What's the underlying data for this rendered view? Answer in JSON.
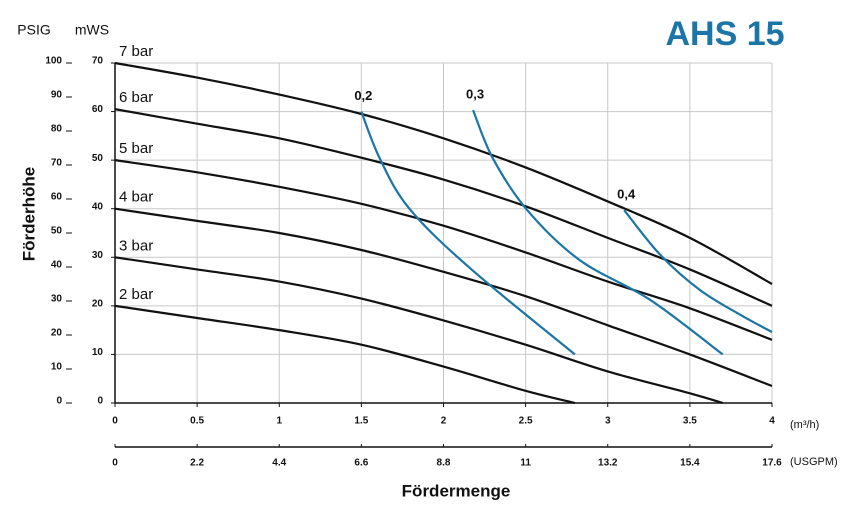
{
  "chart_data": {
    "type": "line",
    "title": "AHS 15",
    "y_label": "Förderhöhe",
    "x_label": "Fördermenge",
    "y_header": "mWS",
    "y2_header": "PSIG",
    "x_unit": "(m³/h)",
    "x2_unit": "(USGPM)",
    "grid": true,
    "xlim": [
      0,
      4
    ],
    "xticks": [
      0,
      0.5,
      1,
      1.5,
      2,
      2.5,
      3,
      3.5,
      4
    ],
    "x2lim": [
      0,
      17.6
    ],
    "x2ticks": [
      0,
      2.2,
      4.4,
      6.6,
      8.8,
      11,
      13.2,
      15.4,
      17.6
    ],
    "ylim": [
      0,
      70
    ],
    "yticks": [
      0,
      10,
      20,
      30,
      40,
      50,
      60,
      70
    ],
    "y2lim": [
      0,
      100
    ],
    "y2ticks": [
      0,
      10,
      20,
      30,
      40,
      50,
      60,
      70,
      80,
      90,
      100
    ],
    "series": [
      {
        "name": "7 bar",
        "color": "#111111",
        "x": [
          0,
          0.5,
          1,
          1.5,
          2,
          2.5,
          3,
          3.5,
          4
        ],
        "values": [
          70,
          67,
          63.5,
          59.5,
          54.5,
          48.5,
          41.5,
          34,
          24.5
        ]
      },
      {
        "name": "6 bar",
        "color": "#111111",
        "x": [
          0,
          0.5,
          1,
          1.5,
          2,
          2.5,
          3,
          3.5,
          4
        ],
        "values": [
          60.5,
          57.5,
          54.5,
          50.5,
          46,
          40.5,
          34,
          27.5,
          20
        ]
      },
      {
        "name": "5 bar",
        "color": "#111111",
        "x": [
          0,
          0.5,
          1,
          1.5,
          2,
          2.5,
          3,
          3.5,
          4
        ],
        "values": [
          50,
          47.5,
          44.5,
          41,
          36.5,
          31,
          25,
          19.5,
          13
        ]
      },
      {
        "name": "4 bar",
        "color": "#111111",
        "x": [
          0,
          0.5,
          1,
          1.5,
          2,
          2.5,
          3,
          3.5,
          4
        ],
        "values": [
          40,
          37.5,
          35,
          31.5,
          27,
          22,
          16,
          10,
          3.5
        ]
      },
      {
        "name": "3 bar",
        "color": "#111111",
        "x": [
          0,
          0.5,
          1,
          1.5,
          2,
          2.5,
          3,
          3.5,
          3.7
        ],
        "values": [
          30,
          27.5,
          25,
          21.5,
          17,
          12,
          6.5,
          2,
          0
        ]
      },
      {
        "name": "2 bar",
        "color": "#111111",
        "x": [
          0,
          0.5,
          1,
          1.5,
          2,
          2.5,
          2.8
        ],
        "values": [
          20,
          17.5,
          15,
          12,
          7.5,
          2.5,
          0
        ]
      },
      {
        "name": "0,2",
        "color": "#1b75a6",
        "x": [
          1.5,
          1.61,
          1.79,
          2.16,
          2.8
        ],
        "values": [
          60,
          50.5,
          40.1,
          27.8,
          10
        ]
      },
      {
        "name": "0,3",
        "color": "#1b75a6",
        "x": [
          2.18,
          2.3,
          2.51,
          2.83,
          3.26,
          3.7
        ],
        "values": [
          60.3,
          50.4,
          39.7,
          29.4,
          21.2,
          10
        ]
      },
      {
        "name": "0,4",
        "color": "#1b75a6",
        "x": [
          3.1,
          3.32,
          3.56,
          3.81,
          4.0
        ],
        "values": [
          39.7,
          30.5,
          23.3,
          18.1,
          14.6
        ]
      }
    ]
  }
}
